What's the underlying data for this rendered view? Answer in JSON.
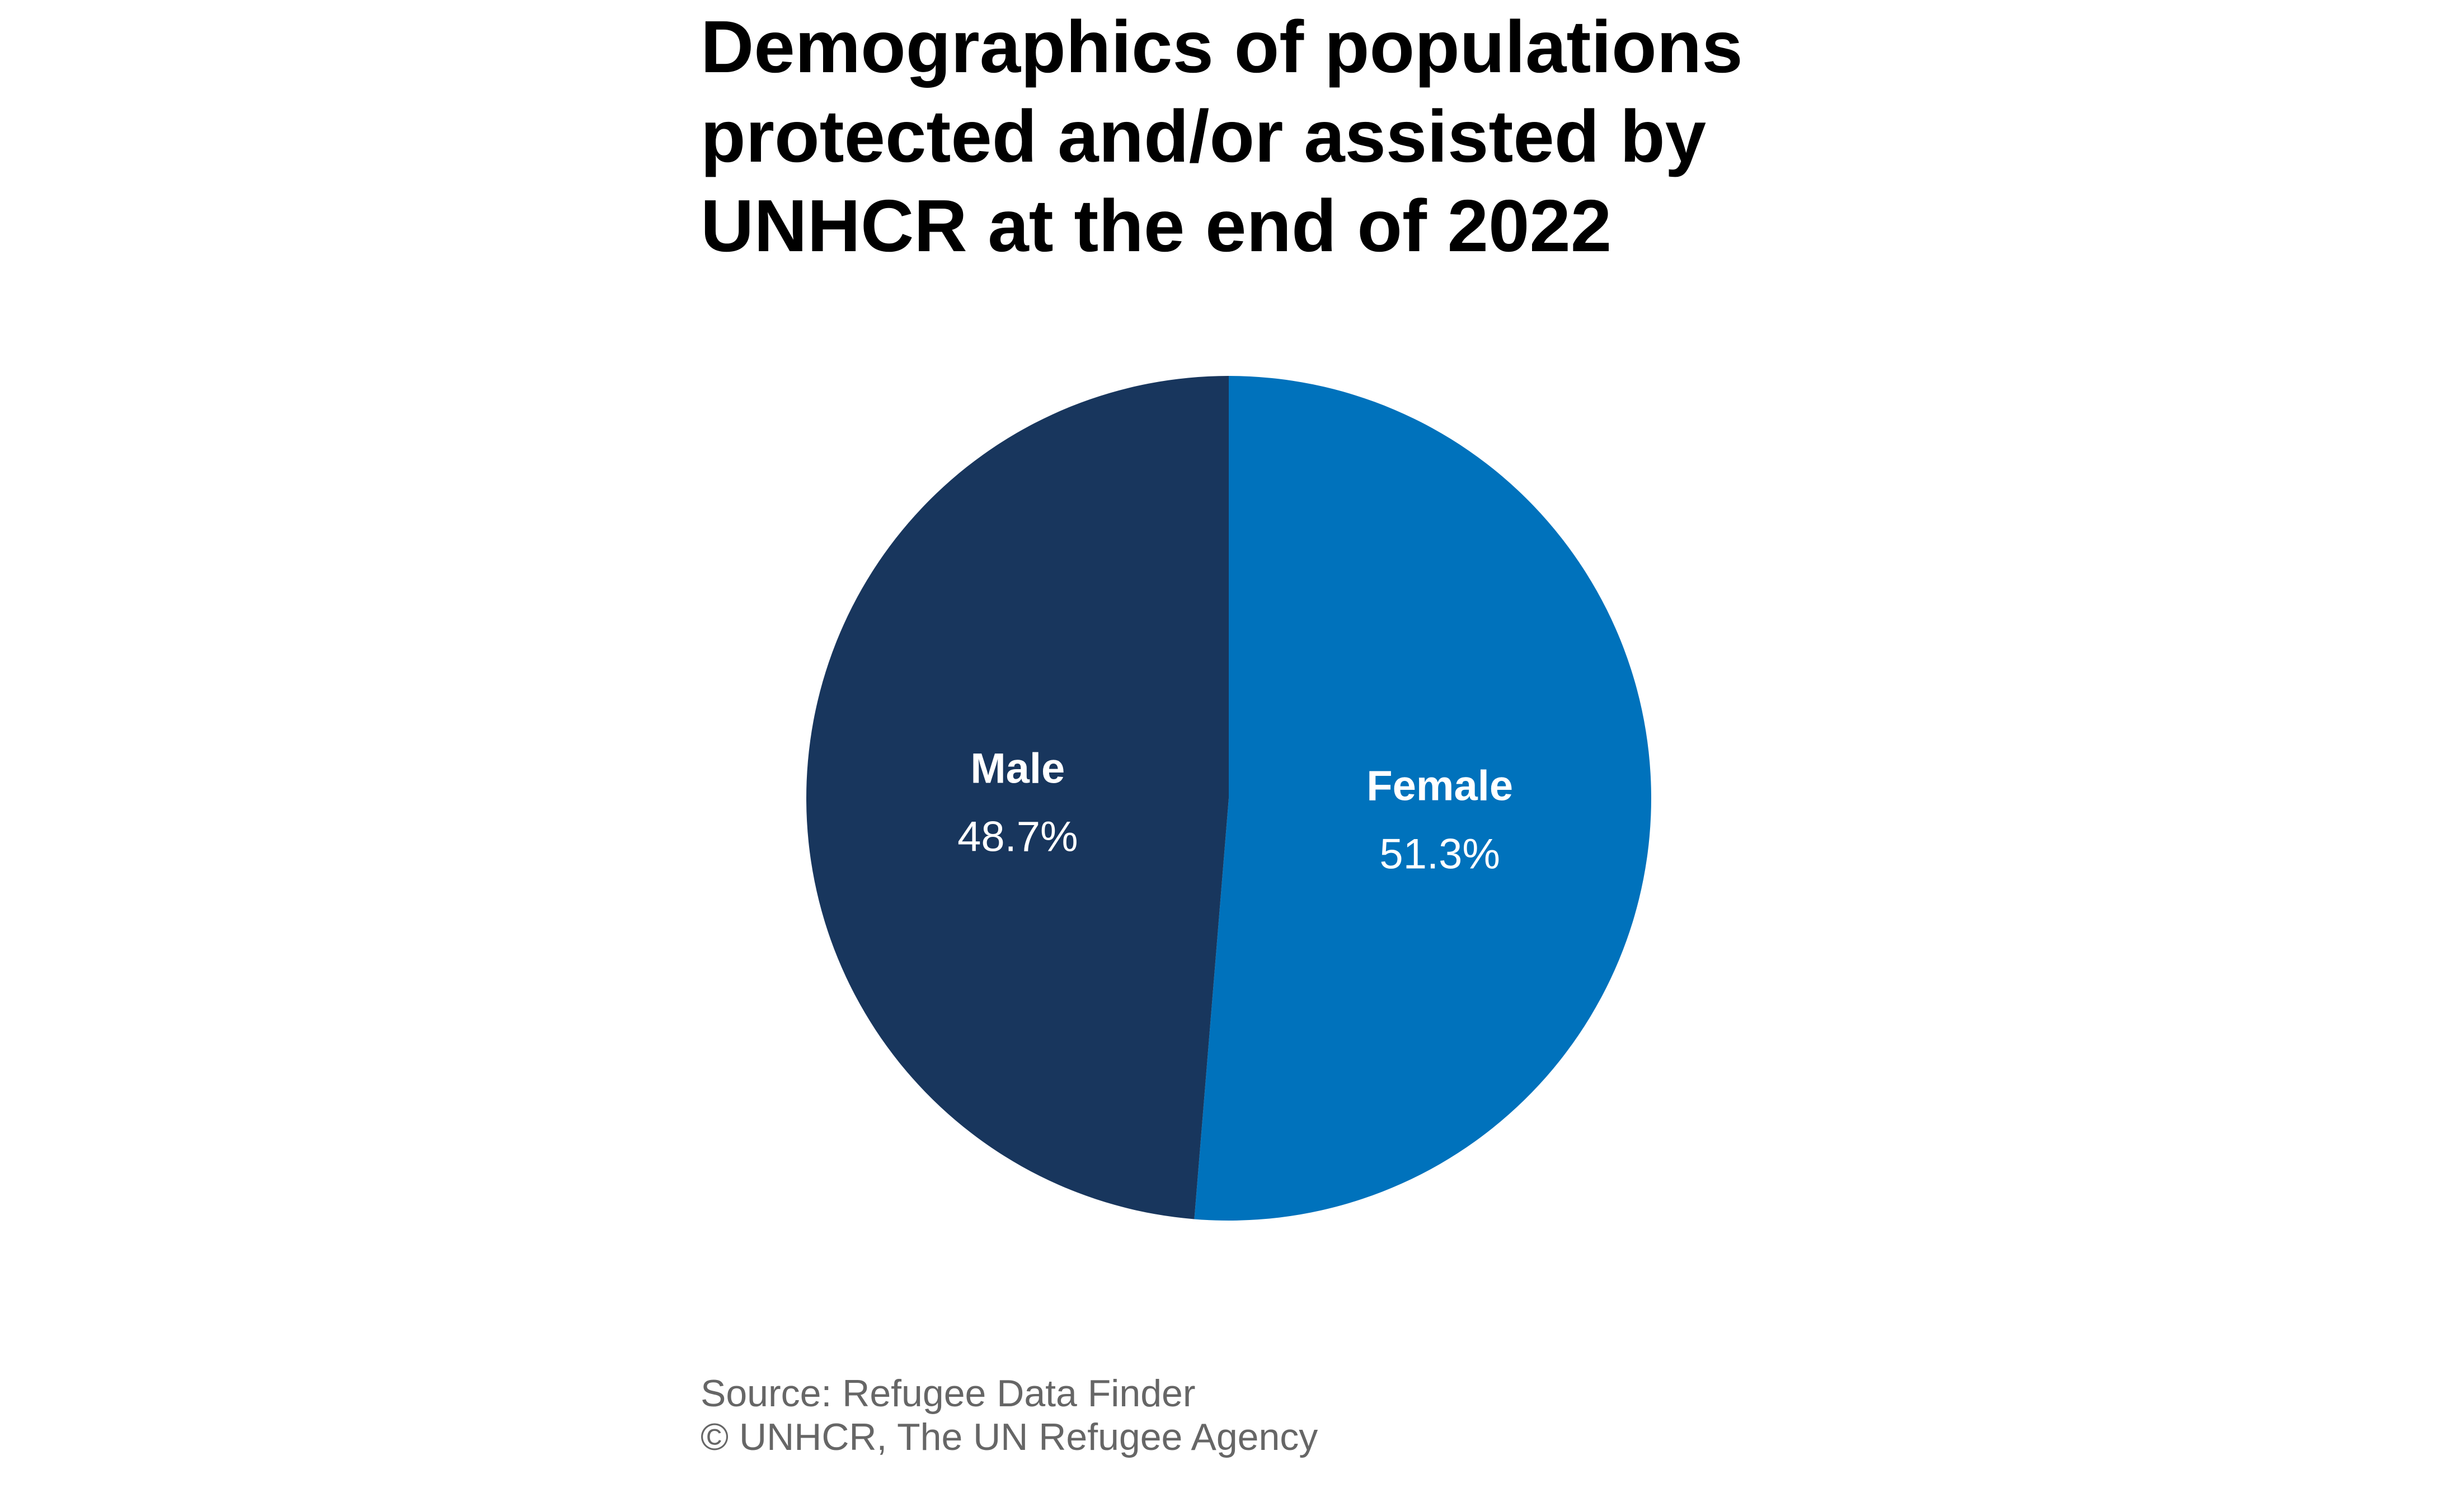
{
  "chart_data": {
    "type": "pie",
    "title_lines": [
      "Demographics of populations",
      "protected and/or assisted by",
      "UNHCR at the end of 2022"
    ],
    "slices": [
      {
        "label": "Female",
        "value": 51.3,
        "value_label": "51.3%",
        "color": "#0072bc"
      },
      {
        "label": "Male",
        "value": 48.7,
        "value_label": "48.7%",
        "color": "#18365d"
      }
    ],
    "start": "12 o'clock",
    "direction": "clockwise",
    "label_color": "#ffffff"
  },
  "footer": {
    "source": "Source: Refugee Data Finder",
    "credit": "© UNHCR, The UN Refugee Agency"
  }
}
